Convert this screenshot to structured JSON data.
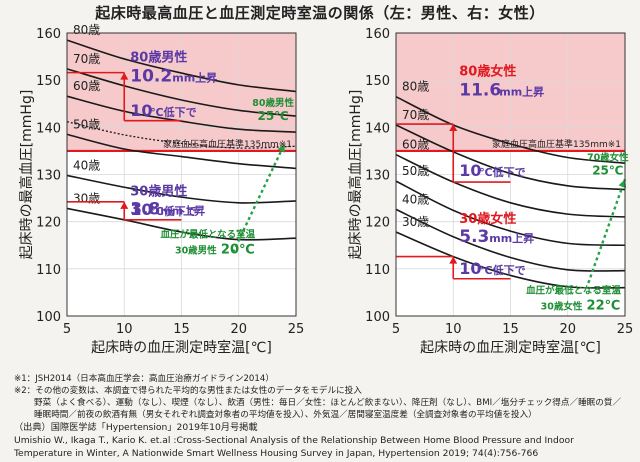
{
  "title": "起床時最高血圧と血圧測定時室温の関係（左：男性、右：女性）",
  "colors": {
    "risk_band": "#f6c9cb",
    "threshold": "#e0191f",
    "curve": "#1a1a1a",
    "trend": "#22a34a",
    "male": "#5b3aa6",
    "female": "#e0191f",
    "note_green": "#1e8f34"
  },
  "chart_data": [
    {
      "type": "line",
      "panel": "left",
      "xlabel": "起床時の血圧測定時室温[℃]",
      "ylabel": "起床時の最高血圧[mmHg]",
      "xlim": [
        5,
        25
      ],
      "ylim": [
        100,
        160
      ],
      "xticks": [
        "5",
        "10",
        "15",
        "20",
        "25"
      ],
      "yticks": [
        "100",
        "110",
        "120",
        "130",
        "140",
        "150",
        "160"
      ],
      "threshold": {
        "value": 135,
        "label": "家庭血圧高血圧基準135mm",
        "note": "※1"
      },
      "series": [
        {
          "name": "80歳",
          "x": [
            5,
            10,
            15,
            20,
            25
          ],
          "values": [
            158.5,
            154.5,
            151.5,
            149.0,
            147.6
          ]
        },
        {
          "name": "70歳",
          "x": [
            5,
            10,
            15,
            20,
            25
          ],
          "values": [
            152.4,
            148.8,
            145.8,
            143.6,
            142.4
          ]
        },
        {
          "name": "60歳",
          "x": [
            5,
            10,
            15,
            20,
            25
          ],
          "values": [
            146.6,
            143.4,
            141.3,
            139.6,
            139.0
          ]
        },
        {
          "name": "50歳",
          "x": [
            5,
            10,
            15,
            20,
            25
          ],
          "values": [
            138.5,
            135.4,
            133.8,
            132.3,
            131.3
          ]
        },
        {
          "name": "40歳",
          "x": [
            5,
            10,
            15,
            20,
            25
          ],
          "values": [
            129.8,
            127.3,
            125.2,
            124.0,
            124.4
          ]
        },
        {
          "name": "30歳",
          "x": [
            5,
            10,
            15,
            20,
            25
          ],
          "values": [
            122.8,
            120.4,
            117.8,
            116.2,
            116.5
          ]
        }
      ],
      "dotted_x": [
        5,
        10,
        15,
        20,
        25
      ],
      "dotted_values": [
        141.2,
        138.4,
        136.6,
        135.6,
        136.0
      ],
      "trend_x": [
        19.5,
        24.0
      ],
      "trend_values": [
        113.5,
        136.5
      ],
      "arrows": [
        {
          "x": 10,
          "from": 151.6,
          "to": 141.4
        },
        {
          "x": 10,
          "from": 124.2,
          "to": 120.4
        }
      ],
      "annotations": {
        "a80_label": "80歳男性",
        "a80_value": "10.2",
        "a80_unit": "mm上昇",
        "a80_drop": "10",
        "a80_drop_unit": "℃低下で",
        "a30_label": "30歳男性",
        "a30_value": "3.8",
        "a30_unit": "mm上昇",
        "a30_drop": "10",
        "a30_drop_unit": "℃低下で",
        "green_top_1": "80歳男性",
        "green_top_2": "25℃",
        "green_bottom_1": "血圧が最低となる室温",
        "green_bottom_2": "30歳男性",
        "green_bottom_3": "20℃"
      }
    },
    {
      "type": "line",
      "panel": "right",
      "xlabel": "起床時の血圧測定時室温[℃]",
      "ylabel": "起床時の最高血圧[mmHg]",
      "xlim": [
        5,
        25
      ],
      "ylim": [
        100,
        160
      ],
      "xticks": [
        "5",
        "10",
        "15",
        "20",
        "25"
      ],
      "yticks": [
        "100",
        "110",
        "120",
        "130",
        "140",
        "150",
        "160"
      ],
      "threshold": {
        "value": 135,
        "label": "家庭血圧高血圧基準135mm",
        "note": "※1"
      },
      "series": [
        {
          "name": "80歳",
          "x": [
            5,
            10,
            15,
            20,
            25
          ],
          "values": [
            146.5,
            140.5,
            136.5,
            133.6,
            132.4
          ]
        },
        {
          "name": "70歳",
          "x": [
            5,
            10,
            15,
            20,
            25
          ],
          "values": [
            140.5,
            134.8,
            130.2,
            127.6,
            126.8
          ]
        },
        {
          "name": "60歳",
          "x": [
            5,
            10,
            15,
            20,
            25
          ],
          "values": [
            134.2,
            128.4,
            124.0,
            121.6,
            121.0
          ]
        },
        {
          "name": "50歳",
          "x": [
            5,
            10,
            15,
            20,
            25
          ],
          "values": [
            128.6,
            122.4,
            118.0,
            115.4,
            115.0
          ]
        },
        {
          "name": "40歳",
          "x": [
            5,
            10,
            15,
            20,
            25
          ],
          "values": [
            122.6,
            116.8,
            112.4,
            109.8,
            109.6
          ]
        },
        {
          "name": "30歳",
          "x": [
            5,
            10,
            15,
            20,
            25
          ],
          "values": [
            117.8,
            112.6,
            108.6,
            106.2,
            106.0
          ]
        }
      ],
      "trend_x": [
        21.8,
        25.0
      ],
      "trend_values": [
        107.0,
        129.0
      ],
      "arrows": [
        {
          "x": 10,
          "from": 140.7,
          "to": 128.4
        },
        {
          "x": 10,
          "from": 112.6,
          "to": 107.9
        }
      ],
      "annotations": {
        "a80_label": "80歳女性",
        "a80_value": "11.6",
        "a80_unit": "mm上昇",
        "a80_drop": "10",
        "a80_drop_unit": "℃低下で",
        "a30_label": "30歳女性",
        "a30_value": "5.3",
        "a30_unit": "mm上昇",
        "a30_drop": "10",
        "a30_drop_unit": "℃低下で",
        "green_top_1": "70歳女性",
        "green_top_2": "25℃",
        "green_bottom_1": "血圧が最低となる室温",
        "green_bottom_2": "30歳女性",
        "green_bottom_3": "22℃"
      }
    }
  ],
  "notes": {
    "n1": "※1：JSH2014（日本高血圧学会：高血圧治療ガイドライン2014）",
    "n2": "※2：その他の変数は、本調査で得られた平均的な男性または女性のデータをモデルに投入",
    "n3": "野菜（よく食べる）、運動（なし）、喫煙（なし）、飲酒（男性：毎日／女性：ほとんど飲まない）、降圧剤（なし）、BMI／塩分チェック得点／睡眠の質／",
    "n4": "睡眠時間／前夜の飲酒有無（男女それぞれ調査対象者の平均値を投入）、外気温／居間寝室温度差（全調査対象者の平均値を投入）"
  },
  "source": {
    "s1": "（出典）国際医学誌「Hypertension」2019年10月号掲載",
    "s2": "Umishio W., Ikaga T., Kario K. et.al :Cross-Sectional Analysis of the Relationship Between Home Blood Pressure and Indoor",
    "s3": "Temperature in Winter, A Nationwide Smart Wellness Housing Survey in Japan, Hypertension 2019; 74(4):756-766"
  }
}
